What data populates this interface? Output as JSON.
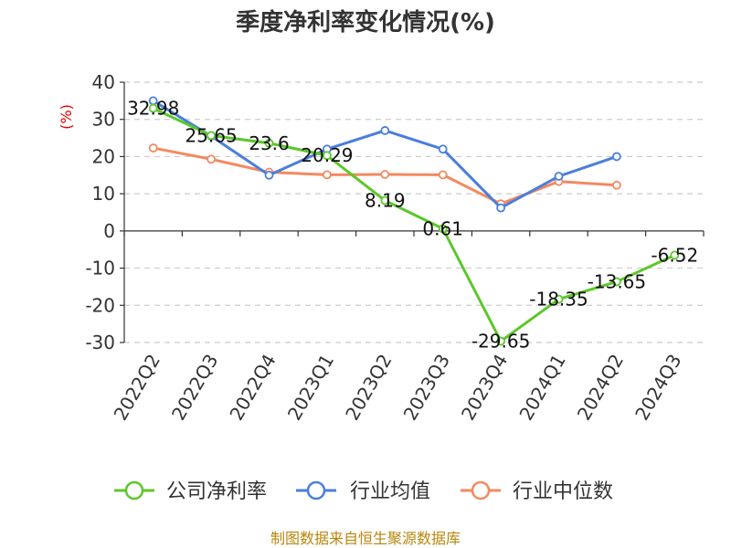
{
  "chart_data": {
    "type": "line",
    "title": "季度净利率变化情况(%)",
    "ylabel": "(%)",
    "xlabel": "",
    "categories": [
      "2022Q2",
      "2022Q3",
      "2022Q4",
      "2023Q1",
      "2023Q2",
      "2023Q3",
      "2023Q4",
      "2024Q1",
      "2024Q2",
      "2024Q3"
    ],
    "ylim": [
      -30,
      40
    ],
    "yticks": [
      40,
      30,
      20,
      10,
      0,
      -10,
      -20,
      -30
    ],
    "grid": true,
    "legend_position": "bottom",
    "series": [
      {
        "name": "公司净利率",
        "color": "#5cc72a",
        "values": [
          32.98,
          25.65,
          23.6,
          20.29,
          8.19,
          0.61,
          -29.65,
          -18.35,
          -13.65,
          -6.52
        ],
        "labels": [
          "32.98",
          "25.65",
          "23.6",
          "20.29",
          "8.19",
          "0.61",
          "-29.65",
          "-18.35",
          "-13.65",
          "-6.52"
        ]
      },
      {
        "name": "行业均值",
        "color": "#4a7fdc",
        "values": [
          35,
          25.5,
          15,
          22,
          27,
          22,
          6.2,
          14.7,
          20,
          null
        ]
      },
      {
        "name": "行业中位数",
        "color": "#f4895f",
        "values": [
          22.3,
          19.3,
          15.8,
          15.1,
          15.2,
          15.1,
          7.3,
          13.3,
          12.3,
          null
        ]
      }
    ]
  },
  "source": "制图数据来自恒生聚源数据库"
}
